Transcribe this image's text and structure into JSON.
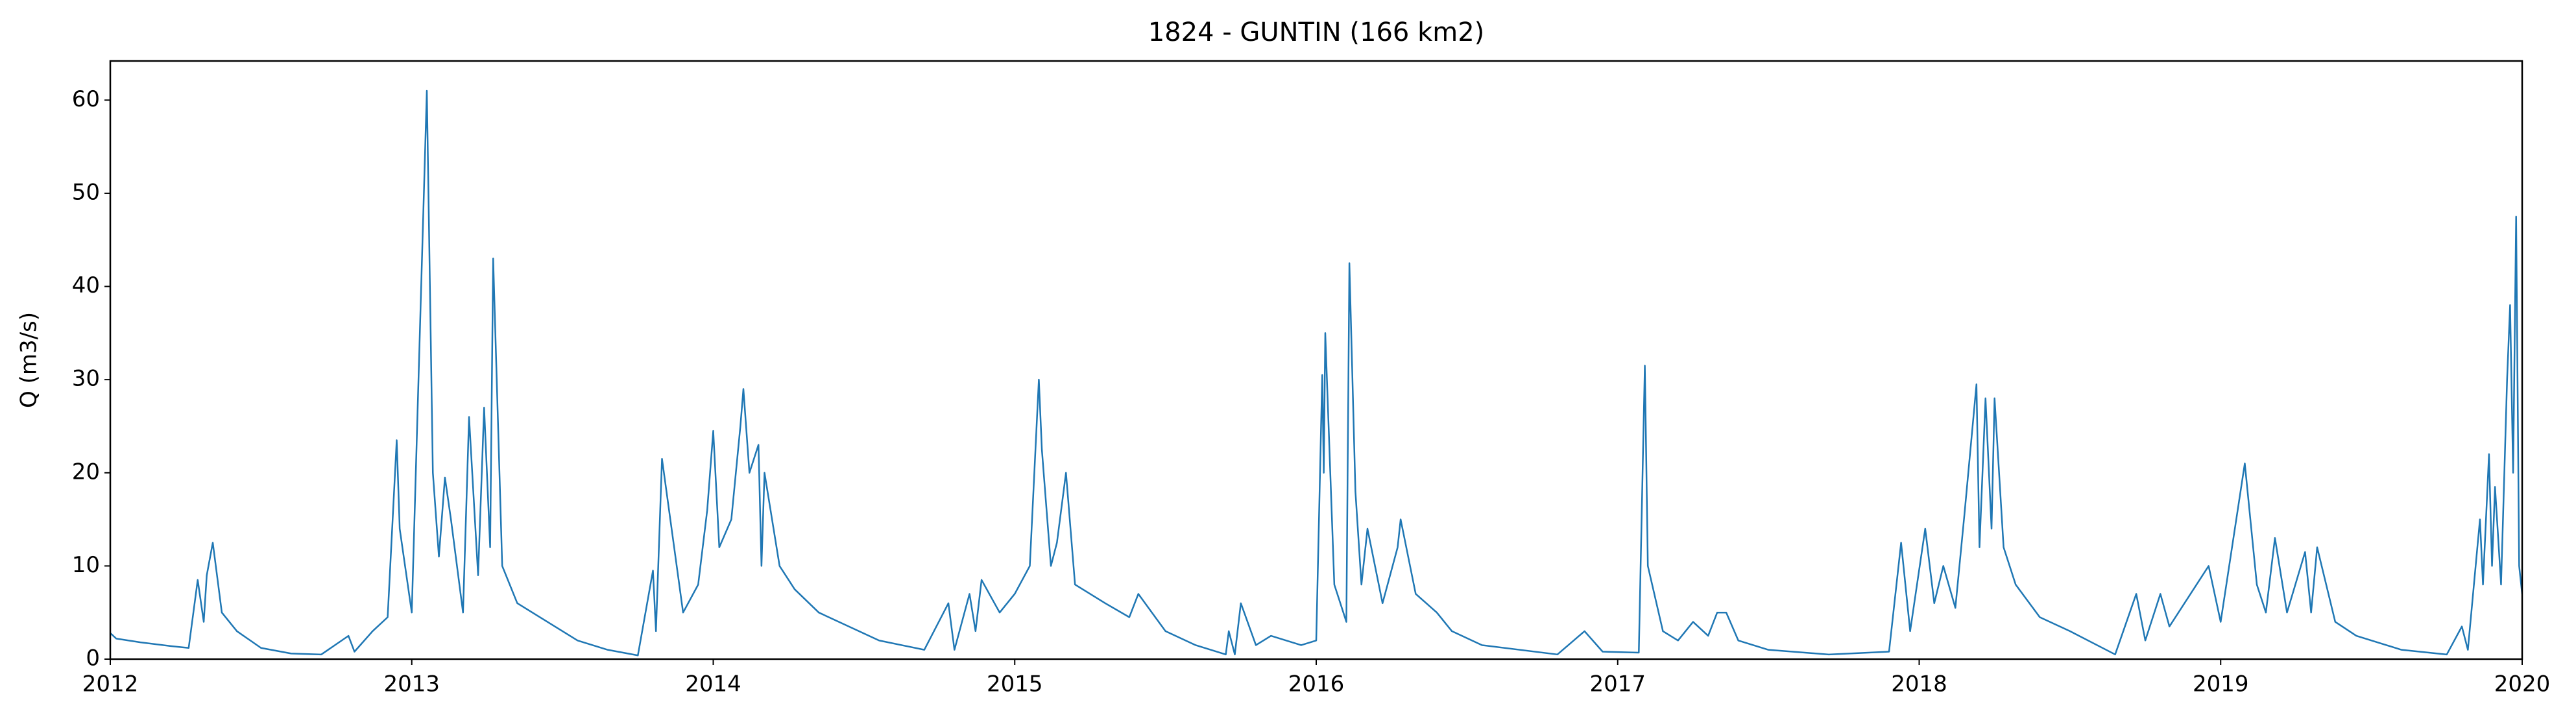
{
  "chart_data": {
    "type": "line",
    "title": "1824 - GUNTIN (166 km2)",
    "y_label": "Q (m3/s)",
    "x": [
      2012.0,
      2012.02,
      2012.1,
      2012.2,
      2012.26,
      2012.29,
      2012.31,
      2012.32,
      2012.34,
      2012.37,
      2012.42,
      2012.5,
      2012.6,
      2012.7,
      2012.79,
      2012.81,
      2012.87,
      2012.92,
      2012.95,
      2012.96,
      2013.0,
      2013.05,
      2013.07,
      2013.09,
      2013.11,
      2013.13,
      2013.17,
      2013.19,
      2013.22,
      2013.24,
      2013.26,
      2013.27,
      2013.3,
      2013.35,
      2013.45,
      2013.55,
      2013.65,
      2013.75,
      2013.8,
      2013.81,
      2013.83,
      2013.9,
      2013.95,
      2013.98,
      2014.0,
      2014.02,
      2014.06,
      2014.09,
      2014.1,
      2014.12,
      2014.15,
      2014.16,
      2014.17,
      2014.22,
      2014.27,
      2014.35,
      2014.45,
      2014.55,
      2014.7,
      2014.78,
      2014.8,
      2014.85,
      2014.87,
      2014.89,
      2014.95,
      2015.0,
      2015.05,
      2015.08,
      2015.09,
      2015.12,
      2015.14,
      2015.17,
      2015.2,
      2015.3,
      2015.38,
      2015.41,
      2015.5,
      2015.6,
      2015.7,
      2015.71,
      2015.73,
      2015.75,
      2015.8,
      2015.85,
      2015.95,
      2016.0,
      2016.02,
      2016.025,
      2016.03,
      2016.06,
      2016.1,
      2016.11,
      2016.13,
      2016.15,
      2016.17,
      2016.22,
      2016.27,
      2016.28,
      2016.33,
      2016.4,
      2016.45,
      2016.55,
      2016.8,
      2016.89,
      2016.95,
      2017.07,
      2017.09,
      2017.1,
      2017.15,
      2017.2,
      2017.25,
      2017.3,
      2017.33,
      2017.36,
      2017.4,
      2017.5,
      2017.7,
      2017.9,
      2017.94,
      2017.97,
      2018.02,
      2018.05,
      2018.08,
      2018.12,
      2018.15,
      2018.19,
      2018.2,
      2018.22,
      2018.24,
      2018.25,
      2018.28,
      2018.32,
      2018.4,
      2018.5,
      2018.65,
      2018.72,
      2018.75,
      2018.8,
      2018.83,
      2018.96,
      2019.0,
      2019.08,
      2019.12,
      2019.15,
      2019.18,
      2019.22,
      2019.28,
      2019.3,
      2019.32,
      2019.38,
      2019.45,
      2019.6,
      2019.75,
      2019.8,
      2019.82,
      2019.86,
      2019.87,
      2019.89,
      2019.9,
      2019.91,
      2019.93,
      2019.95,
      2019.96,
      2019.97,
      2019.98,
      2019.99,
      2020.0
    ],
    "series": [
      {
        "color": "#1f77b4",
        "values": [
          2.8,
          2.2,
          1.8,
          1.4,
          1.2,
          8.5,
          4,
          9,
          12.5,
          5,
          3,
          1.2,
          0.6,
          0.5,
          2.5,
          0.8,
          3,
          4.5,
          23.5,
          14,
          5,
          61,
          20,
          11,
          19.5,
          15,
          5,
          26,
          9,
          27,
          12,
          43,
          10,
          6,
          4,
          2,
          1,
          0.4,
          9.5,
          3,
          21.5,
          5,
          8,
          16,
          24.5,
          12,
          15,
          25,
          29,
          20,
          23,
          10,
          20,
          10,
          7.5,
          5,
          3.5,
          2,
          1,
          6,
          1,
          7,
          3,
          8.5,
          5,
          7,
          10,
          30,
          22.5,
          10,
          12.5,
          20,
          8,
          6,
          4.5,
          7,
          3,
          1.5,
          0.5,
          3,
          0.5,
          6,
          1.5,
          2.5,
          1.5,
          2,
          30.5,
          20,
          35,
          8,
          4,
          42.5,
          18,
          8,
          14,
          6,
          12,
          15,
          7,
          5,
          3,
          1.5,
          0.5,
          3,
          0.8,
          0.7,
          31.5,
          10,
          3,
          2,
          4,
          2.5,
          5,
          5,
          2,
          1,
          0.5,
          0.8,
          12.5,
          3,
          14,
          6,
          10,
          5.5,
          15.5,
          29.5,
          12,
          28,
          14,
          28,
          12,
          8,
          4.5,
          3,
          0.5,
          7,
          2,
          7,
          3.5,
          10,
          4,
          21,
          8,
          5,
          13,
          5,
          11.5,
          5,
          12,
          4,
          2.5,
          1,
          0.5,
          3.5,
          1,
          15,
          8,
          22,
          10,
          18.5,
          8,
          30,
          38,
          20,
          47.5,
          10,
          7
        ]
      }
    ],
    "xlim": [
      2012,
      2020
    ],
    "xticks": [
      2012,
      2013,
      2014,
      2015,
      2016,
      2017,
      2018,
      2019,
      2020
    ],
    "ylim": [
      0,
      64.2
    ],
    "yticks": [
      0,
      10,
      20,
      30,
      40,
      50,
      60
    ]
  }
}
